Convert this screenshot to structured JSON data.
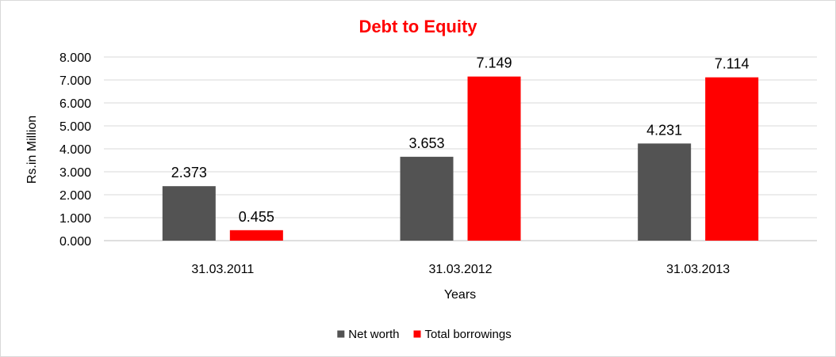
{
  "chart_data": {
    "type": "bar",
    "title": "Debt to Equity",
    "xlabel": "Years",
    "ylabel": "Rs.in Million",
    "categories": [
      "31.03.2011",
      "31.03.2012",
      "31.03.2013"
    ],
    "series": [
      {
        "name": "Net worth",
        "color": "#535353",
        "values": [
          2.373,
          3.653,
          4.231
        ],
        "labels": [
          "2.373",
          "3.653",
          "4.231"
        ]
      },
      {
        "name": "Total borrowings",
        "color": "#ff0000",
        "values": [
          0.455,
          7.149,
          7.114
        ],
        "labels": [
          "0.455",
          "7.149",
          "7.114"
        ]
      }
    ],
    "ylim": [
      0,
      8
    ],
    "yticks": [
      0,
      1,
      2,
      3,
      4,
      5,
      6,
      7,
      8
    ],
    "ytick_labels": [
      "0.000",
      "1.000",
      "2.000",
      "3.000",
      "4.000",
      "5.000",
      "6.000",
      "7.000",
      "8.000"
    ],
    "grid": true,
    "legend_position": "bottom"
  }
}
